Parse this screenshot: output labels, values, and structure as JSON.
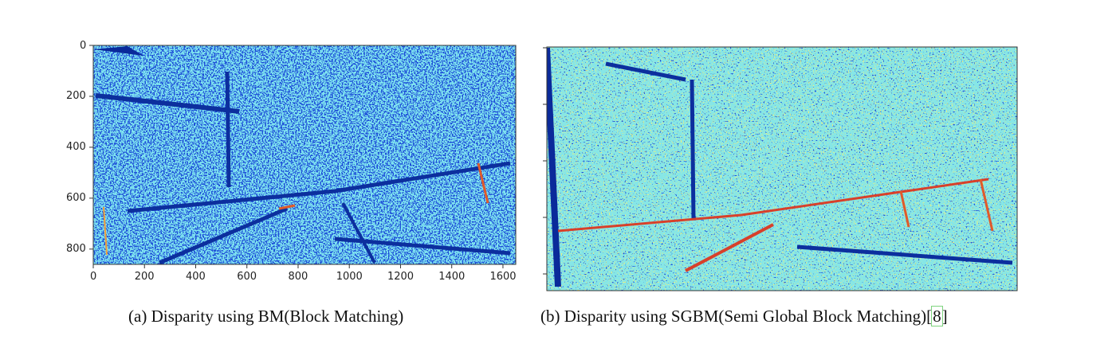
{
  "figures": [
    {
      "caption_label": "(a)",
      "caption_text": "Disparity using BM(Block Matching)",
      "caption_cite": ""
    },
    {
      "caption_label": "(b)",
      "caption_text": "Disparity using SGBM(Semi Global Block Matching)",
      "caption_cite": "8"
    }
  ],
  "chart_data": [
    {
      "type": "heatmap",
      "colormap": "jet",
      "xlim": [
        0,
        1650
      ],
      "ylim": [
        860,
        0
      ],
      "x_ticks": [
        "0",
        "200",
        "400",
        "600",
        "800",
        "1000",
        "1200",
        "1400",
        "1600"
      ],
      "y_ticks": [
        "0",
        "200",
        "400",
        "600",
        "800"
      ]
    },
    {
      "type": "heatmap",
      "colormap": "jet",
      "xlim": [
        0,
        1650
      ],
      "ylim": [
        860,
        0
      ],
      "x_ticks": [],
      "y_ticks": []
    }
  ]
}
